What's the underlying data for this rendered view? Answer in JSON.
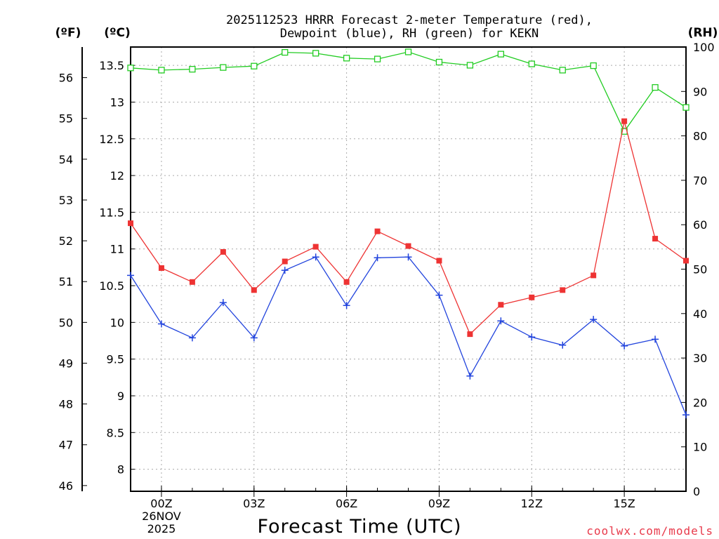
{
  "chart_data": {
    "type": "line",
    "title_lines": [
      "2025112523 HRRR Forecast 2-meter Temperature (red),",
      "Dewpoint (blue), RH (green) for KEKN"
    ],
    "xlabel": "Forecast Time (UTC)",
    "credit": "coolwx.com/models",
    "unit_labels": {
      "fahrenheit": "(ºF)",
      "celsius": "(ºC)",
      "rh": "(RH)"
    },
    "x": [
      -1,
      0,
      1,
      2,
      3,
      4,
      5,
      6,
      7,
      8,
      9,
      10,
      11,
      12,
      13,
      14,
      15,
      16,
      17
    ],
    "xlim": [
      -1,
      17
    ],
    "x_ticks": [
      {
        "x": 0,
        "label": "00Z",
        "sub": [
          "26NOV",
          "2025"
        ]
      },
      {
        "x": 3,
        "label": "03Z",
        "sub": []
      },
      {
        "x": 6,
        "label": "06Z",
        "sub": []
      },
      {
        "x": 9,
        "label": "09Z",
        "sub": []
      },
      {
        "x": 12,
        "label": "12Z",
        "sub": []
      },
      {
        "x": 15,
        "label": "15Z",
        "sub": []
      }
    ],
    "axes": {
      "celsius": {
        "lim": [
          7.7,
          13.75
        ],
        "ticks": [
          "8",
          "8.5",
          "9",
          "9.5",
          "10",
          "10.5",
          "11",
          "11.5",
          "12",
          "12.5",
          "13",
          "13.5"
        ]
      },
      "fahrenheit": {
        "lim": [
          45.86,
          56.75
        ],
        "ticks": [
          "46",
          "47",
          "48",
          "49",
          "50",
          "51",
          "52",
          "53",
          "54",
          "55",
          "56"
        ]
      },
      "rh": {
        "lim": [
          0,
          100
        ],
        "ticks": [
          "0",
          "10",
          "20",
          "30",
          "40",
          "50",
          "60",
          "70",
          "80",
          "90",
          "100"
        ]
      }
    },
    "grid": true,
    "series": [
      {
        "name": "Temperature",
        "unit": "C",
        "color": "#ee3333",
        "marker": "filled-square",
        "values": [
          11.35,
          10.74,
          10.55,
          10.96,
          10.44,
          10.83,
          11.03,
          10.55,
          11.24,
          11.04,
          10.84,
          9.84,
          10.24,
          10.34,
          10.44,
          10.64,
          12.74,
          11.14,
          10.84
        ]
      },
      {
        "name": "Dewpoint",
        "unit": "C",
        "color": "#2244dd",
        "marker": "plus",
        "values": [
          10.64,
          9.98,
          9.79,
          10.27,
          9.79,
          10.71,
          10.89,
          10.23,
          10.88,
          10.89,
          10.37,
          9.27,
          10.02,
          9.8,
          9.69,
          10.04,
          9.68,
          9.77,
          8.74
        ]
      },
      {
        "name": "RH",
        "unit": "%",
        "color": "#22cc22",
        "marker": "open-square",
        "values": [
          95.3,
          94.8,
          95.0,
          95.4,
          95.7,
          98.8,
          98.6,
          97.5,
          97.3,
          98.9,
          96.6,
          95.9,
          98.4,
          96.2,
          94.8,
          95.8,
          81.0,
          90.9,
          86.4
        ]
      }
    ]
  }
}
